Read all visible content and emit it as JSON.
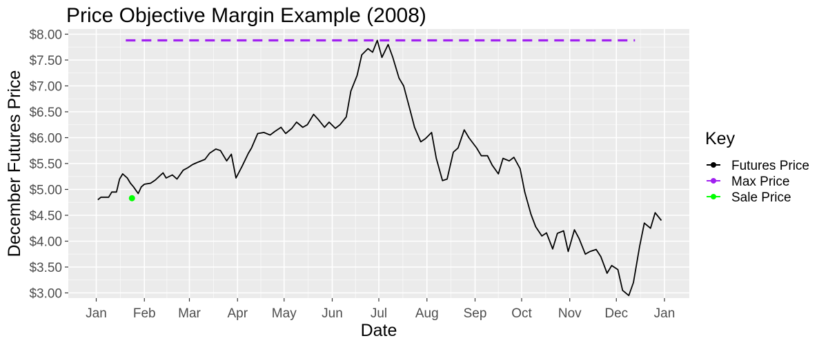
{
  "chart_data": {
    "type": "line",
    "title": "Price Objective Margin Example (2008)",
    "xlabel": "Date",
    "ylabel": "December Futures Price",
    "x_tick_labels": [
      "Jan",
      "Feb",
      "Mar",
      "Apr",
      "May",
      "Jun",
      "Jul",
      "Aug",
      "Sep",
      "Oct",
      "Nov",
      "Dec",
      "Jan"
    ],
    "y_tick_labels": [
      "$3.00",
      "$3.50",
      "$4.00",
      "$4.50",
      "$5.00",
      "$5.50",
      "$6.00",
      "$6.50",
      "$7.00",
      "$7.50",
      "$8.00"
    ],
    "y_ticks": [
      3.0,
      3.5,
      4.0,
      4.5,
      5.0,
      5.5,
      6.0,
      6.5,
      7.0,
      7.5,
      8.0
    ],
    "xlim": [
      "2007-12-14",
      "2009-01-17"
    ],
    "ylim": [
      2.9,
      8.1
    ],
    "grid": true,
    "legend": {
      "title": "Key",
      "placement": "right",
      "entries": [
        {
          "label": "Futures Price",
          "color": "#000000"
        },
        {
          "label": "Max Price",
          "color": "#a020f0"
        },
        {
          "label": "Sale Price",
          "color": "#00ff00"
        }
      ]
    },
    "series": [
      {
        "name": "Futures Price",
        "color": "#000000",
        "style": "line",
        "x": [
          "2008-01-02",
          "2008-01-04",
          "2008-01-09",
          "2008-01-11",
          "2008-01-14",
          "2008-01-16",
          "2008-01-18",
          "2008-01-21",
          "2008-01-23",
          "2008-01-25",
          "2008-01-28",
          "2008-01-30",
          "2008-02-01",
          "2008-02-05",
          "2008-02-08",
          "2008-02-13",
          "2008-02-15",
          "2008-02-19",
          "2008-02-22",
          "2008-02-26",
          "2008-02-29",
          "2008-03-03",
          "2008-03-06",
          "2008-03-11",
          "2008-03-14",
          "2008-03-18",
          "2008-03-21",
          "2008-03-25",
          "2008-03-28",
          "2008-03-31",
          "2008-04-04",
          "2008-04-08",
          "2008-04-10",
          "2008-04-14",
          "2008-04-18",
          "2008-04-22",
          "2008-04-25",
          "2008-04-29",
          "2008-05-02",
          "2008-05-06",
          "2008-05-09",
          "2008-05-13",
          "2008-05-16",
          "2008-05-20",
          "2008-05-23",
          "2008-05-27",
          "2008-05-30",
          "2008-06-03",
          "2008-06-06",
          "2008-06-10",
          "2008-06-13",
          "2008-06-17",
          "2008-06-20",
          "2008-06-24",
          "2008-06-27",
          "2008-06-30",
          "2008-07-03",
          "2008-07-07",
          "2008-07-10",
          "2008-07-14",
          "2008-07-17",
          "2008-07-21",
          "2008-07-24",
          "2008-07-28",
          "2008-07-31",
          "2008-08-04",
          "2008-08-07",
          "2008-08-11",
          "2008-08-14",
          "2008-08-18",
          "2008-08-21",
          "2008-08-25",
          "2008-08-28",
          "2008-09-02",
          "2008-09-05",
          "2008-09-09",
          "2008-09-12",
          "2008-09-16",
          "2008-09-19",
          "2008-09-23",
          "2008-09-26",
          "2008-09-30",
          "2008-10-03",
          "2008-10-07",
          "2008-10-10",
          "2008-10-14",
          "2008-10-17",
          "2008-10-21",
          "2008-10-24",
          "2008-10-28",
          "2008-10-31",
          "2008-11-04",
          "2008-11-07",
          "2008-11-11",
          "2008-11-14",
          "2008-11-18",
          "2008-11-21",
          "2008-11-25",
          "2008-11-28",
          "2008-12-02",
          "2008-12-05",
          "2008-12-09",
          "2008-12-12",
          "2008-12-16",
          "2008-12-19",
          "2008-12-23",
          "2008-12-26",
          "2008-12-30"
        ],
        "y": [
          4.8,
          4.85,
          4.85,
          4.95,
          4.95,
          5.2,
          5.3,
          5.22,
          5.12,
          5.05,
          4.92,
          5.05,
          5.1,
          5.12,
          5.18,
          5.32,
          5.22,
          5.28,
          5.2,
          5.37,
          5.42,
          5.48,
          5.52,
          5.58,
          5.7,
          5.78,
          5.75,
          5.55,
          5.68,
          5.22,
          5.45,
          5.7,
          5.8,
          6.08,
          6.1,
          6.05,
          6.12,
          6.2,
          6.08,
          6.18,
          6.3,
          6.2,
          6.25,
          6.45,
          6.35,
          6.2,
          6.3,
          6.18,
          6.25,
          6.4,
          6.9,
          7.2,
          7.6,
          7.72,
          7.65,
          7.88,
          7.55,
          7.8,
          7.55,
          7.15,
          7.0,
          6.55,
          6.2,
          5.92,
          5.98,
          6.1,
          5.6,
          5.17,
          5.2,
          5.72,
          5.8,
          6.15,
          6.0,
          5.8,
          5.65,
          5.65,
          5.47,
          5.3,
          5.6,
          5.55,
          5.62,
          5.4,
          4.95,
          4.52,
          4.28,
          4.1,
          4.16,
          3.85,
          4.15,
          4.2,
          3.8,
          4.22,
          4.05,
          3.75,
          3.8,
          3.84,
          3.7,
          3.38,
          3.53,
          3.45,
          3.05,
          2.95,
          3.2,
          3.9,
          4.35,
          4.25,
          4.55,
          4.4
        ]
      },
      {
        "name": "Max Price",
        "color": "#a020f0",
        "style": "dashed",
        "x": [
          "2008-01-20",
          "2008-12-13"
        ],
        "y": [
          7.88,
          7.88
        ]
      },
      {
        "name": "Sale Price",
        "color": "#00ff00",
        "style": "point",
        "x": [
          "2008-01-24"
        ],
        "y": [
          4.83
        ]
      }
    ]
  }
}
